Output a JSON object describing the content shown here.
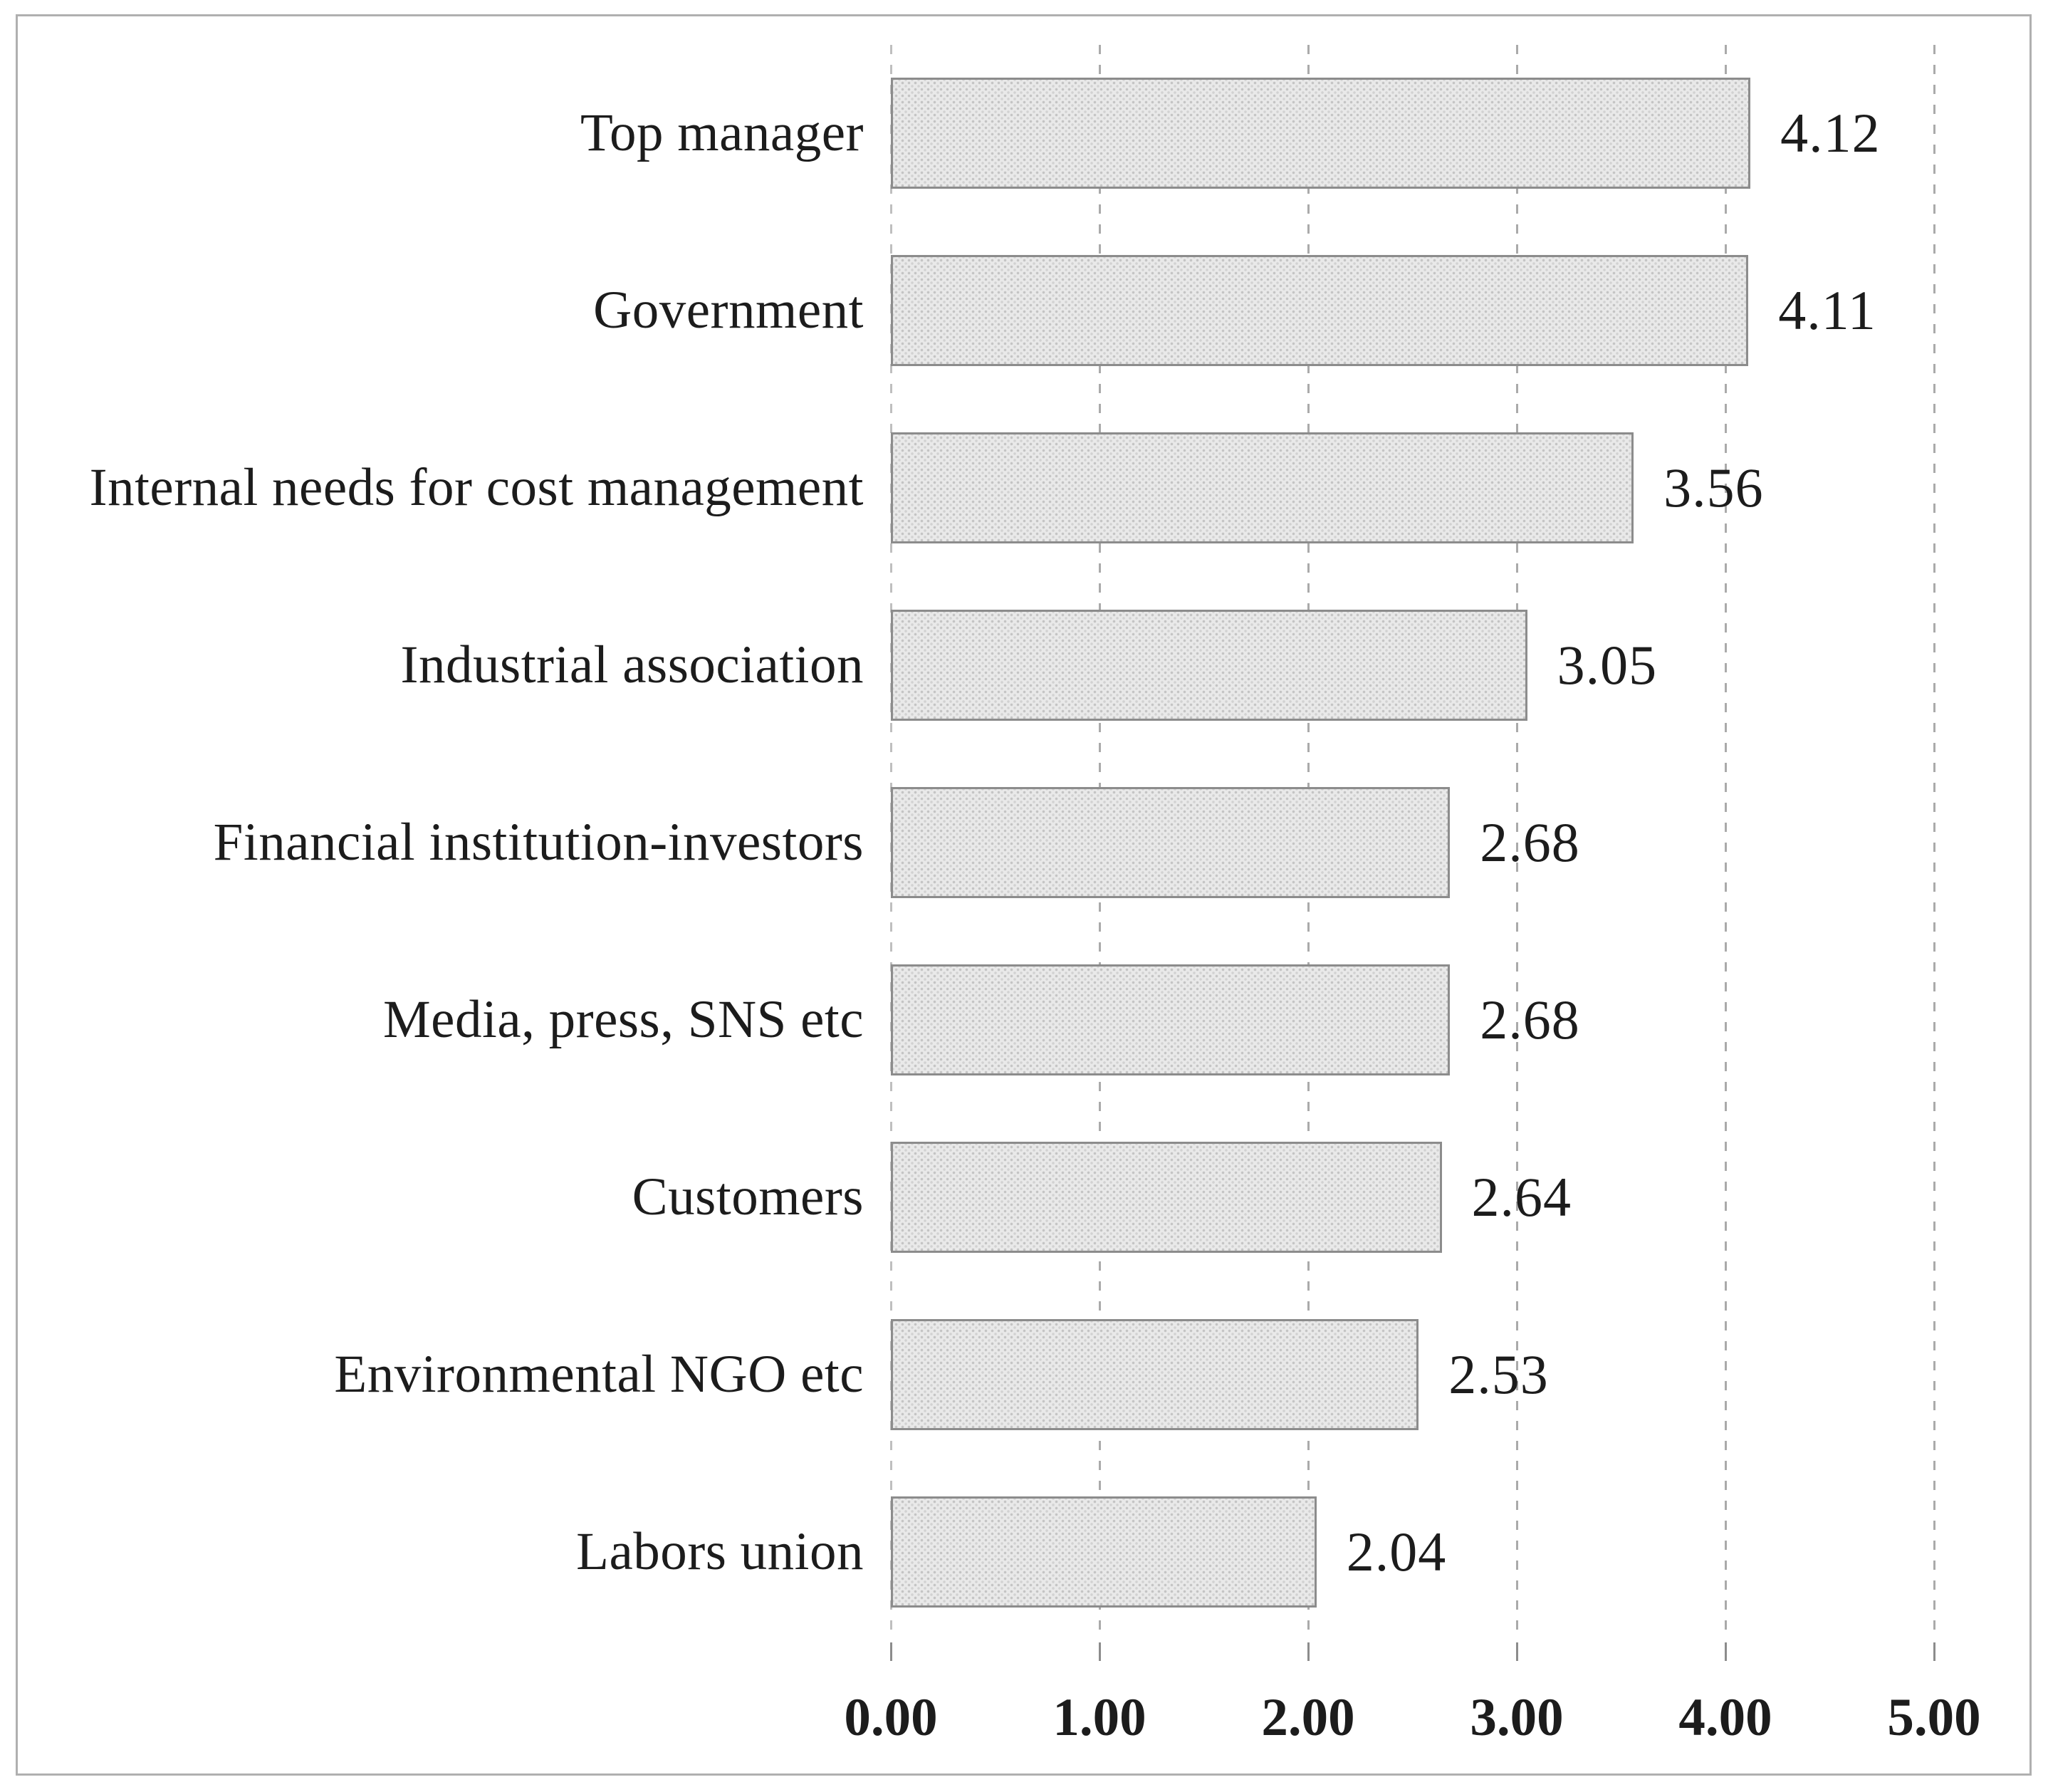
{
  "chart_data": {
    "type": "bar",
    "orientation": "horizontal",
    "title": "",
    "xlabel": "",
    "ylabel": "",
    "categories": [
      "Top manager",
      "Government",
      "Internal needs for cost management",
      "Industrial association",
      "Financial institution-investors",
      "Media, press, SNS etc",
      "Customers",
      "Environmental NGO etc",
      "Labors union"
    ],
    "values": [
      4.12,
      4.11,
      3.56,
      3.05,
      2.68,
      2.68,
      2.64,
      2.53,
      2.04
    ],
    "value_labels": [
      "4.12",
      "4.11",
      "3.56",
      "3.05",
      "2.68",
      "2.68",
      "2.64",
      "2.53",
      "2.04"
    ],
    "x_ticks": [
      {
        "value": 0,
        "label": "0.00"
      },
      {
        "value": 1,
        "label": "1.00"
      },
      {
        "value": 2,
        "label": "2.00"
      },
      {
        "value": 3,
        "label": "3.00"
      },
      {
        "value": 4,
        "label": "4.00"
      },
      {
        "value": 5,
        "label": "5.00"
      }
    ],
    "xlim": [
      0,
      5.46
    ],
    "grid": "vertical-dashed",
    "legend": "none",
    "colors": {
      "bar_fill": "#e9e9e9",
      "bar_dot_texture": "#c4c4c4",
      "bar_border": "#8c8c8c",
      "gridline": "#aaaaaa",
      "tick": "#8c8c8c",
      "text": "#1c1c1c",
      "frame_border": "#b0b0b0",
      "background": "#ffffff"
    }
  }
}
